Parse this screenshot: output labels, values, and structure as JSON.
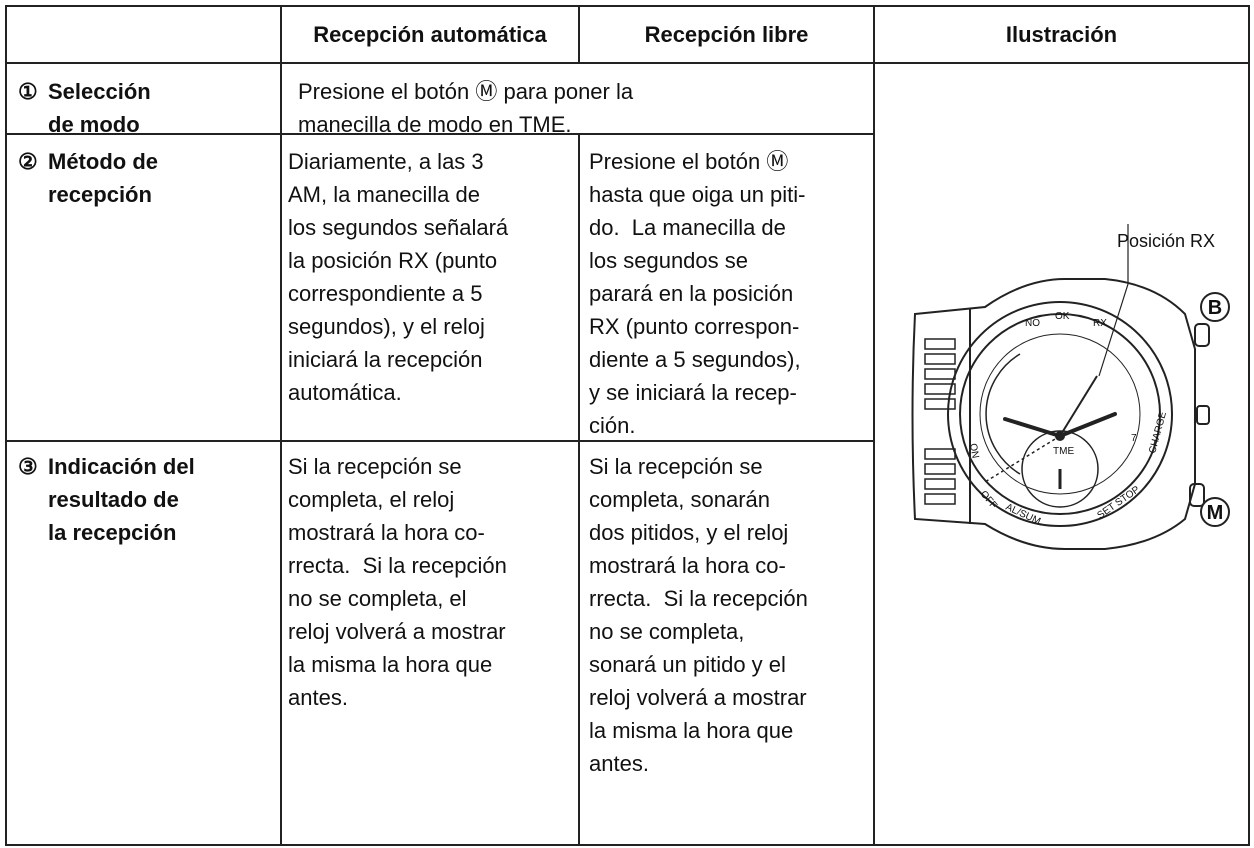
{
  "header": {
    "col2": "Recepción automática",
    "col3": "Recepción libre",
    "col4": "Ilustración"
  },
  "rows": [
    {
      "number": "①",
      "label": [
        "Selección",
        "de modo"
      ],
      "merged": [
        "Presione el botón Ⓜ para poner la",
        "manecilla de modo en TME."
      ]
    },
    {
      "number": "②",
      "label": [
        "Método de",
        "recepción"
      ],
      "auto": [
        "Diariamente, a las 3",
        "AM, la manecilla de",
        "los segundos señalará",
        "la posición RX (punto",
        "correspondiente a 5",
        "segundos), y el reloj",
        "iniciará la recepción",
        "automática."
      ],
      "libre": [
        "Presione el botón Ⓜ",
        "hasta que oiga un piti-",
        "do.  La manecilla de",
        "los segundos se",
        "parará en la posición",
        "RX (punto correspon-",
        "diente a 5 segundos),",
        "y se iniciará la recep-",
        "ción."
      ]
    },
    {
      "number": "③",
      "label": [
        "Indicación del",
        "resultado de",
        "la recepción"
      ],
      "auto": [
        "Si la recepción se",
        "completa, el reloj",
        "mostrará la hora co-",
        "rrecta.  Si la recepción",
        "no se completa, el",
        "reloj volverá a mostrar",
        "la misma la hora que",
        "antes."
      ],
      "libre": [
        "Si la recepción se",
        "completa, sonarán",
        "dos pitidos, y el reloj",
        "mostrará la hora co-",
        "rrecta.  Si la recepción",
        "no se completa,",
        "sonará un pitido y el",
        "reloj volverá a mostrar",
        "la misma la hora que",
        "antes."
      ]
    }
  ],
  "illustration": {
    "callout": "Posición RX",
    "button_b": "B",
    "button_m": "M",
    "dial": {
      "no": "NO",
      "ok": "OK",
      "rx": "RX",
      "charge": "CHARGE",
      "on": "ON",
      "off": "OFF",
      "alsum": "AL/SUM.",
      "setstop": "SET STOP",
      "tme": "TME",
      "date": "7"
    }
  }
}
